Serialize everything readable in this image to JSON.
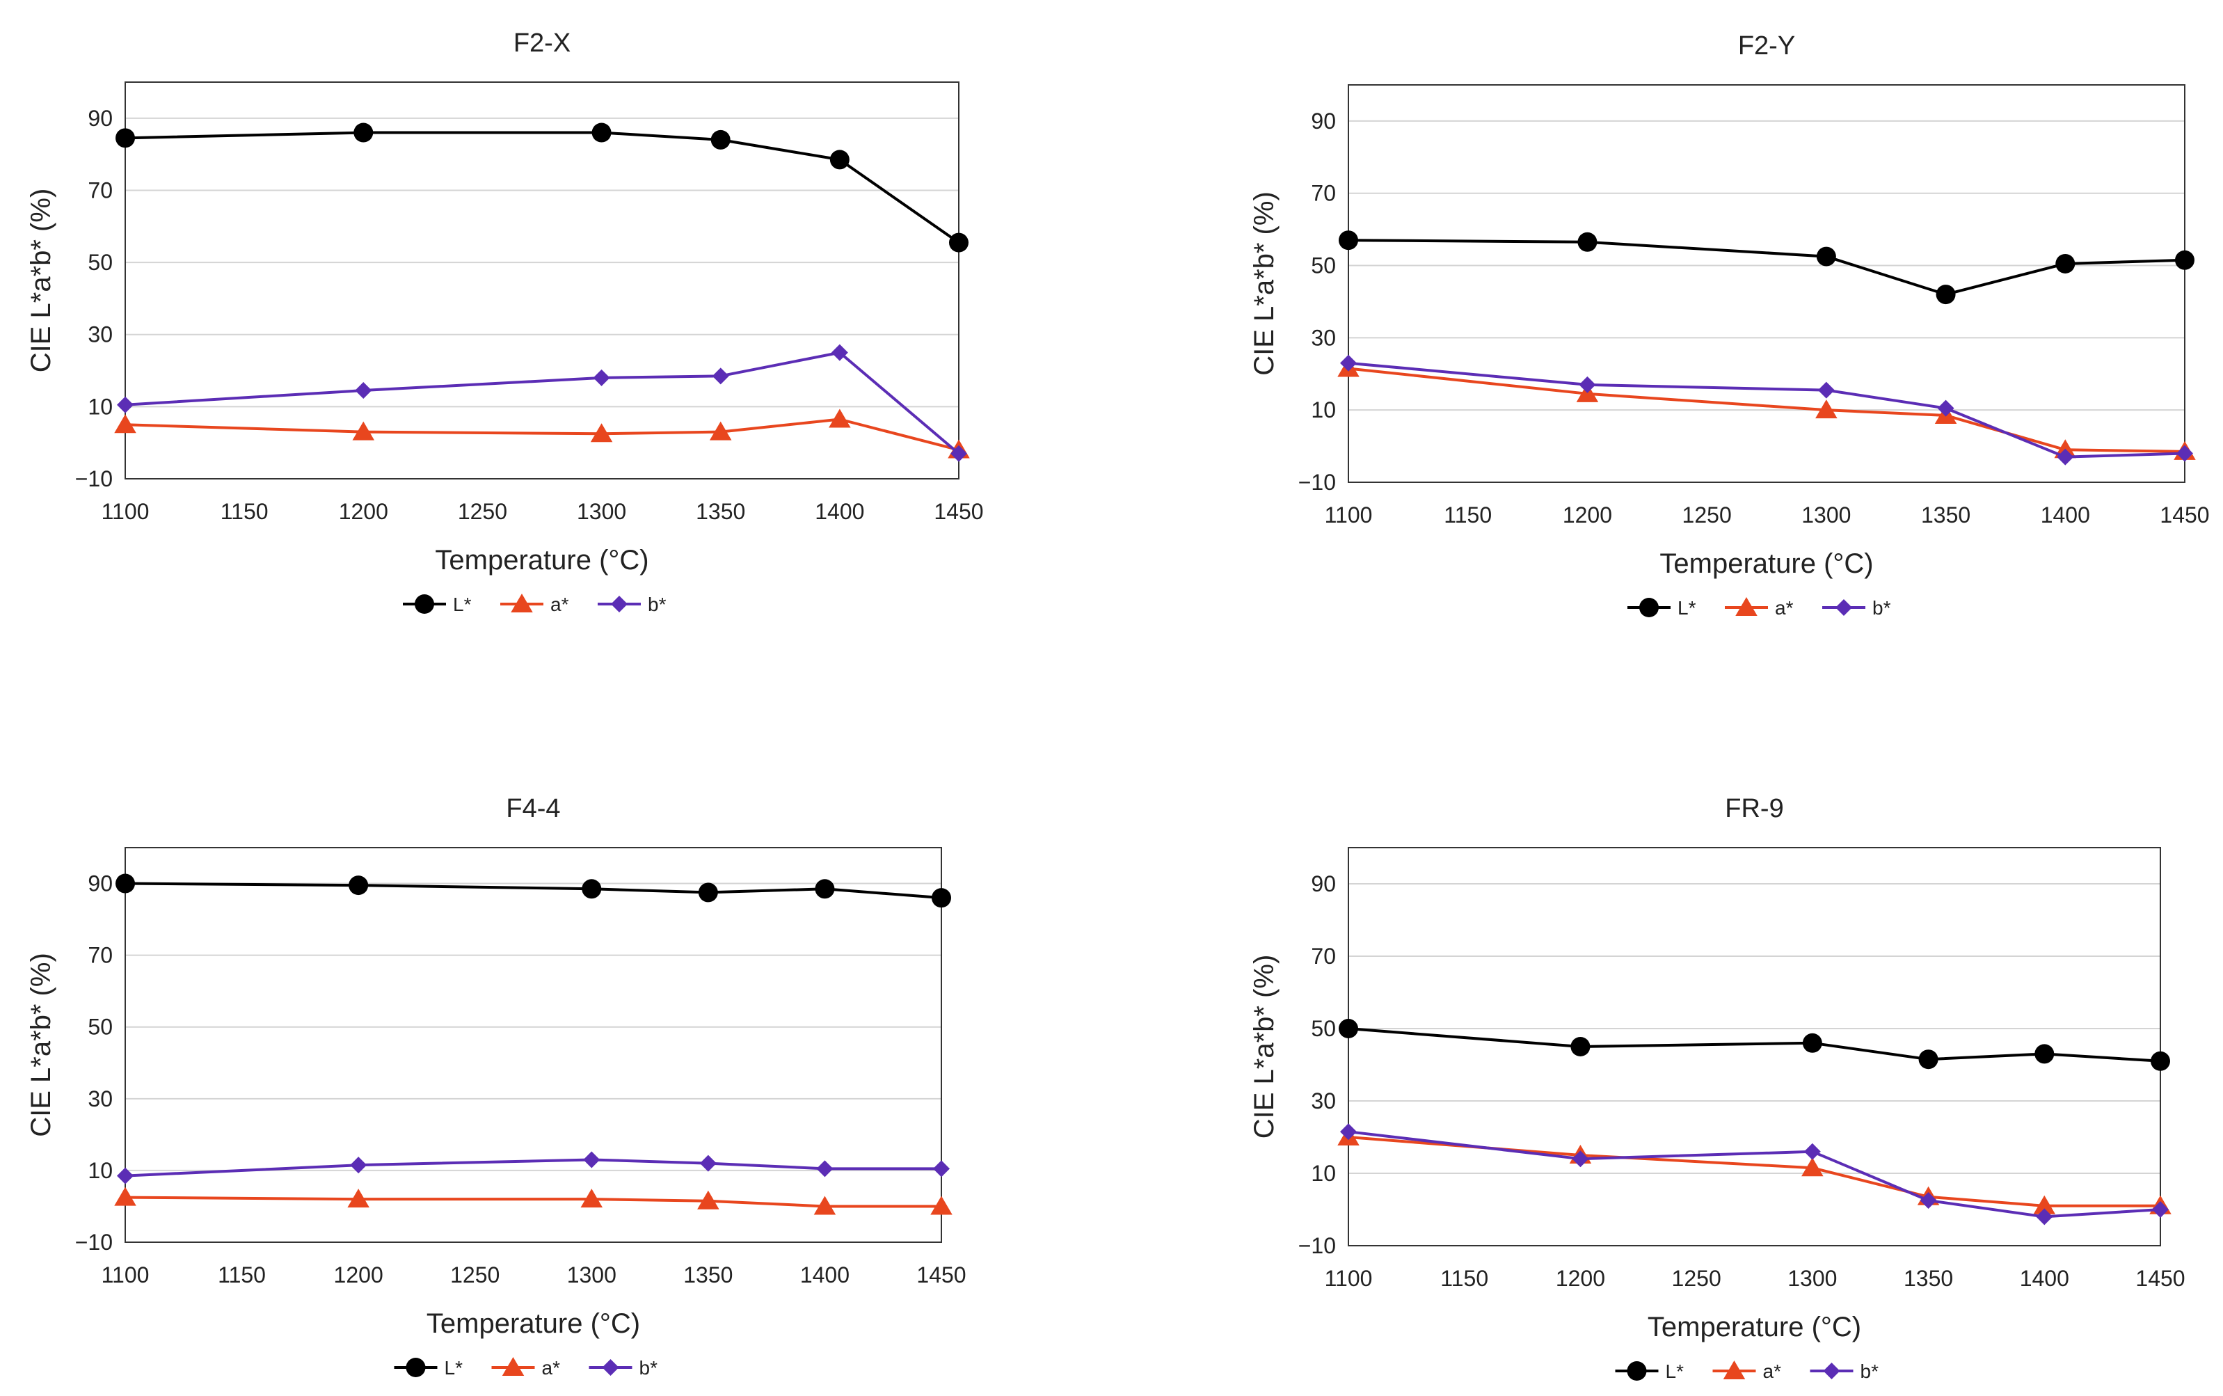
{
  "chart_data": [
    {
      "type": "line",
      "title": "F2-X",
      "xlabel": "Temperature  (°C)",
      "ylabel": "CIE L*a*b* (%)",
      "x": [
        1100,
        1200,
        1300,
        1350,
        1400,
        1450
      ],
      "xticks": [
        1100,
        1150,
        1200,
        1250,
        1300,
        1350,
        1400,
        1450
      ],
      "yticks": [
        -10,
        10,
        30,
        50,
        70,
        90
      ],
      "xlim": [
        1100,
        1450
      ],
      "ylim": [
        -10,
        100
      ],
      "grid": true,
      "legend_position": "bottom",
      "series": [
        {
          "name": "L*",
          "color": "#000000",
          "marker": "circle",
          "values": [
            84.5,
            86,
            86,
            84,
            78.5,
            55.5
          ]
        },
        {
          "name": "a*",
          "color": "#E8461E",
          "marker": "triangle",
          "values": [
            5,
            3,
            2.5,
            3,
            6.5,
            -2
          ]
        },
        {
          "name": "b*",
          "color": "#5B2DB5",
          "marker": "diamond",
          "values": [
            10.5,
            14.5,
            18,
            18.5,
            25,
            -3
          ]
        }
      ]
    },
    {
      "type": "line",
      "title": "F2-Y",
      "xlabel": "Temperature  (°C)",
      "ylabel": "CIE L*a*b* (%)",
      "x": [
        1100,
        1200,
        1300,
        1350,
        1400,
        1450
      ],
      "xticks": [
        1100,
        1150,
        1200,
        1250,
        1300,
        1350,
        1400,
        1450
      ],
      "yticks": [
        -10,
        10,
        30,
        50,
        70,
        90
      ],
      "xlim": [
        1100,
        1450
      ],
      "ylim": [
        -10,
        100
      ],
      "grid": true,
      "legend_position": "bottom",
      "series": [
        {
          "name": "L*",
          "color": "#000000",
          "marker": "circle",
          "values": [
            57,
            56.5,
            52.5,
            42,
            50.5,
            51.5
          ]
        },
        {
          "name": "a*",
          "color": "#E8461E",
          "marker": "triangle",
          "values": [
            21.5,
            14.5,
            10,
            8.5,
            -1,
            -1.5
          ]
        },
        {
          "name": "b*",
          "color": "#5B2DB5",
          "marker": "diamond",
          "values": [
            23,
            17,
            15.5,
            10.5,
            -3,
            -2
          ]
        }
      ]
    },
    {
      "type": "line",
      "title": "F4-4",
      "xlabel": "Temperature  (°C)",
      "ylabel": "CIE L*a*b* (%)",
      "x": [
        1100,
        1200,
        1300,
        1350,
        1400,
        1450
      ],
      "xticks": [
        1100,
        1150,
        1200,
        1250,
        1300,
        1350,
        1400,
        1450
      ],
      "yticks": [
        -10,
        10,
        30,
        50,
        70,
        90
      ],
      "xlim": [
        1100,
        1450
      ],
      "ylim": [
        -10,
        100
      ],
      "grid": true,
      "legend_position": "bottom",
      "series": [
        {
          "name": "L*",
          "color": "#000000",
          "marker": "circle",
          "values": [
            90,
            89.5,
            88.5,
            87.5,
            88.5,
            86
          ]
        },
        {
          "name": "a*",
          "color": "#E8461E",
          "marker": "triangle",
          "values": [
            2.5,
            2,
            2,
            1.5,
            0,
            0
          ]
        },
        {
          "name": "b*",
          "color": "#5B2DB5",
          "marker": "diamond",
          "values": [
            8.5,
            11.5,
            13,
            12,
            10.5,
            10.5
          ]
        }
      ]
    },
    {
      "type": "line",
      "title": "FR-9",
      "xlabel": "Temperature  (°C)",
      "ylabel": "CIE L*a*b* (%)",
      "x": [
        1100,
        1200,
        1300,
        1350,
        1400,
        1450
      ],
      "xticks": [
        1100,
        1150,
        1200,
        1250,
        1300,
        1350,
        1400,
        1450
      ],
      "yticks": [
        -10,
        10,
        30,
        50,
        70,
        90
      ],
      "xlim": [
        1100,
        1450
      ],
      "ylim": [
        -10,
        100
      ],
      "grid": true,
      "legend_position": "bottom",
      "series": [
        {
          "name": "L*",
          "color": "#000000",
          "marker": "circle",
          "values": [
            50,
            45,
            46,
            41.5,
            43,
            41
          ]
        },
        {
          "name": "a*",
          "color": "#E8461E",
          "marker": "triangle",
          "values": [
            20,
            15,
            11.5,
            3.5,
            1,
            1
          ]
        },
        {
          "name": "b*",
          "color": "#5B2DB5",
          "marker": "diamond",
          "values": [
            21.5,
            14,
            16,
            2.5,
            -2,
            0
          ]
        }
      ]
    }
  ]
}
